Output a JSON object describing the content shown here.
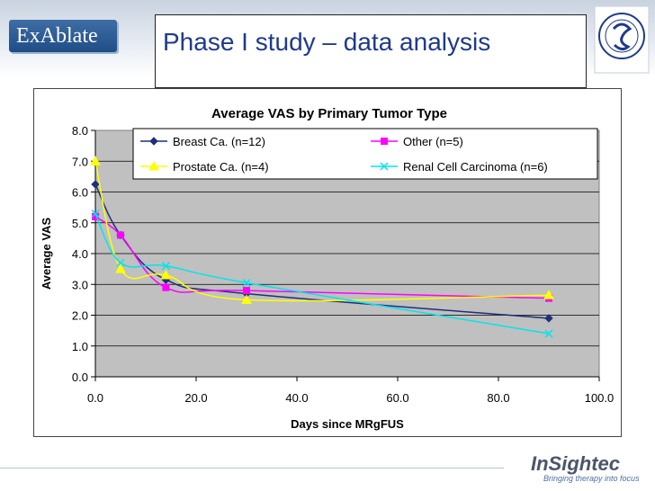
{
  "slide": {
    "title": "Phase I study – data analysis",
    "logo_left": "ExAblate",
    "footer_brand": "InSightec",
    "footer_tagline": "Bringing therapy into focus"
  },
  "chart_data": {
    "type": "line",
    "title": "Average VAS by Primary Tumor Type",
    "xlabel": "Days since MRgFUS",
    "ylabel": "Average VAS",
    "xlim": [
      0,
      100
    ],
    "ylim": [
      0,
      8
    ],
    "x_ticks": [
      "0.0",
      "20.0",
      "40.0",
      "60.0",
      "80.0",
      "100.0"
    ],
    "y_ticks": [
      "0.0",
      "1.0",
      "2.0",
      "3.0",
      "4.0",
      "5.0",
      "6.0",
      "7.0",
      "8.0"
    ],
    "grid": true,
    "legend_position": "top-inside",
    "series": [
      {
        "name": "Breast Ca. (n=12)",
        "color": "#1f2f7a",
        "marker": "diamond",
        "x": [
          0,
          5,
          14,
          30,
          90
        ],
        "y": [
          6.25,
          4.6,
          3.15,
          2.7,
          1.9
        ]
      },
      {
        "name": "Other (n=5)",
        "color": "#ff00ff",
        "marker": "square",
        "x": [
          0,
          5,
          14,
          30,
          90
        ],
        "y": [
          5.2,
          4.6,
          2.9,
          2.8,
          2.55
        ]
      },
      {
        "name": "Prostate Ca. (n=4)",
        "color": "#ffff00",
        "marker": "triangle",
        "x": [
          0,
          5,
          14,
          30,
          90
        ],
        "y": [
          7.0,
          3.5,
          3.3,
          2.5,
          2.65
        ]
      },
      {
        "name": "Renal Cell Carcinoma (n=6)",
        "color": "#00e5ee",
        "marker": "x",
        "x": [
          0,
          5,
          14,
          30,
          90
        ],
        "y": [
          5.3,
          3.7,
          3.6,
          3.05,
          1.4
        ]
      }
    ]
  }
}
